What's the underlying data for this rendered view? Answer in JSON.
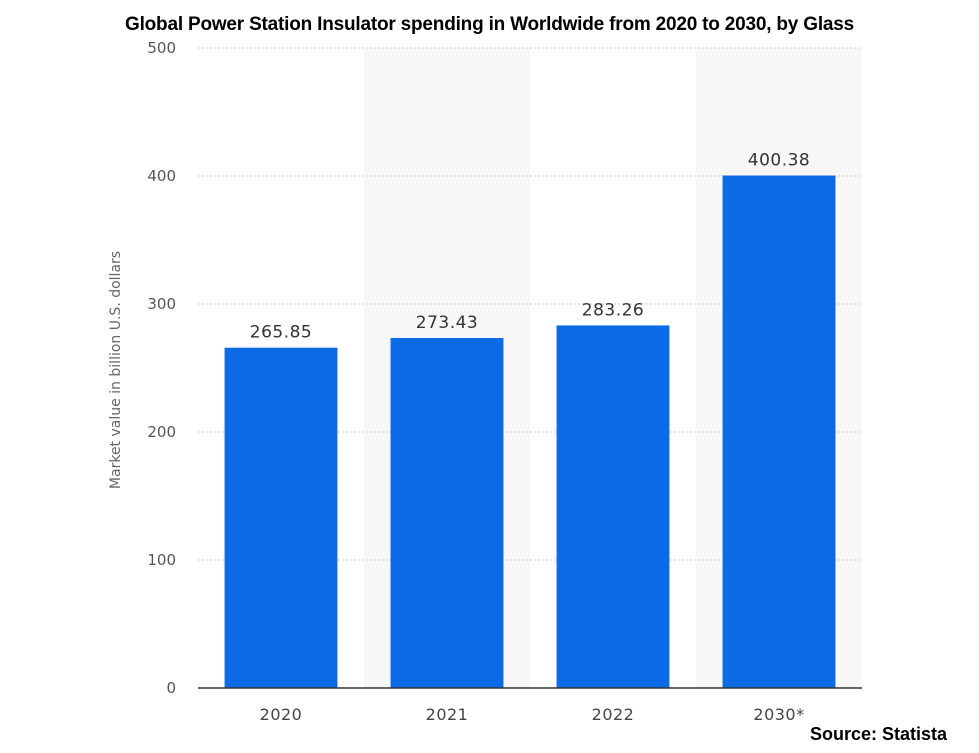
{
  "chart_data": {
    "type": "bar",
    "title": "Global Power Station Insulator spending in Worldwide from 2020 to 2030, by Glass",
    "categories": [
      "2020",
      "2021",
      "2022",
      "2030*"
    ],
    "values": [
      265.85,
      273.43,
      283.26,
      400.38
    ],
    "data_labels": [
      "265.85",
      "273.43",
      "283.26",
      "400.38"
    ],
    "xlabel": "",
    "ylabel": "Market value in billion U.S. dollars",
    "ylim": [
      0,
      500
    ],
    "yticks": [
      "0",
      "100",
      "200",
      "300",
      "400",
      "500"
    ],
    "grid": true,
    "bar_color": "#0d6ae6",
    "source": "Source: Statista"
  }
}
